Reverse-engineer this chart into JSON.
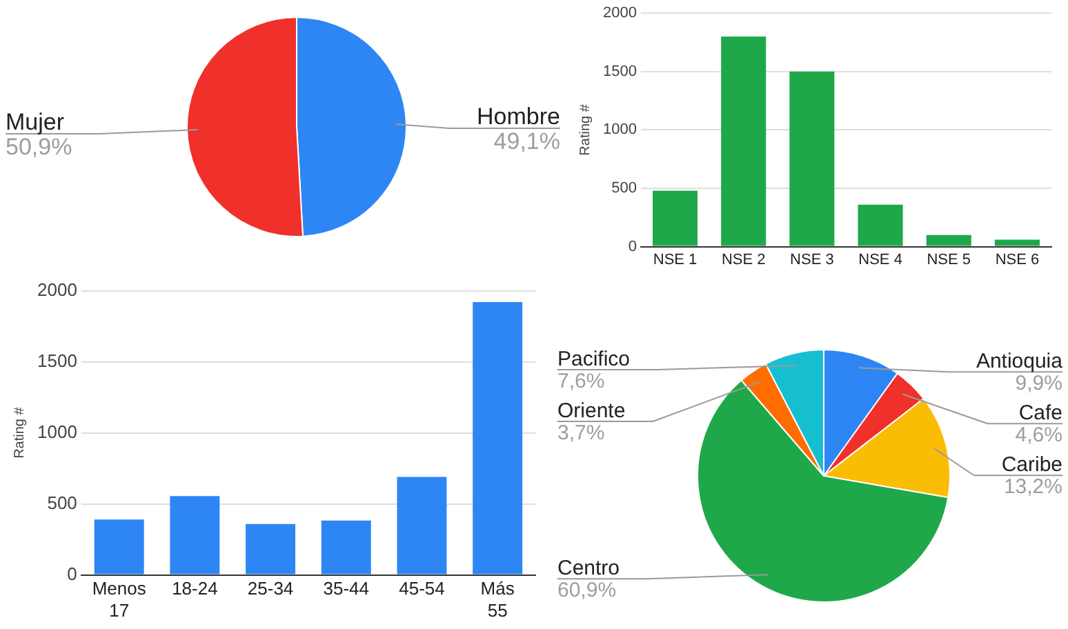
{
  "chart_data": [
    {
      "type": "pie",
      "categories": [
        "Hombre",
        "Mujer"
      ],
      "values": [
        49.1,
        50.9
      ],
      "colors": [
        "#2e86f5",
        "#f0302a"
      ],
      "value_labels": [
        "49,1%",
        "50,9%"
      ]
    },
    {
      "type": "bar",
      "categories": [
        "NSE 1",
        "NSE 2",
        "NSE 3",
        "NSE 4",
        "NSE 5",
        "NSE 6"
      ],
      "values": [
        480,
        1800,
        1500,
        360,
        100,
        60
      ],
      "color": "#1fa84a",
      "ylabel": "Rating #",
      "ylim": [
        0,
        2000
      ],
      "yticks": [
        0,
        500,
        1000,
        1500,
        2000
      ],
      "grid": "y"
    },
    {
      "type": "bar",
      "categories": [
        "Menos 17",
        "18-24",
        "25-34",
        "35-44",
        "45-54",
        "Más 55"
      ],
      "values": [
        390,
        555,
        358,
        383,
        690,
        1920
      ],
      "color": "#2e86f5",
      "ylabel": "Rating #",
      "ylim": [
        0,
        2000
      ],
      "yticks": [
        0,
        500,
        1000,
        1500,
        2000
      ],
      "grid": "y"
    },
    {
      "type": "pie",
      "categories": [
        "Antioquia",
        "Cafe",
        "Caribe",
        "Centro",
        "Oriente",
        "Pacifico"
      ],
      "values": [
        9.9,
        4.6,
        13.2,
        60.9,
        3.7,
        7.6
      ],
      "colors": [
        "#2e86f5",
        "#f0302a",
        "#fbbc04",
        "#1fa84a",
        "#ff6d01",
        "#16bfcf"
      ],
      "value_labels": [
        "9,9%",
        "4,6%",
        "13,2%",
        "60,9%",
        "3,7%",
        "7,6%"
      ]
    }
  ]
}
